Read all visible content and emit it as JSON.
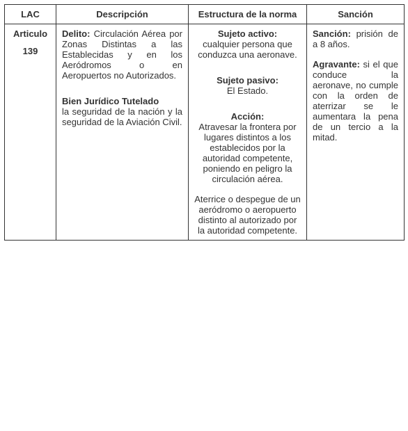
{
  "headers": {
    "lac": "LAC",
    "descripcion": "Descripción",
    "estructura": "Estructura de la norma",
    "sancion": "Sanción"
  },
  "row": {
    "lac": {
      "articulo": "Articulo",
      "numero": "139"
    },
    "descripcion": {
      "delito_label": "Delito:",
      "delito_text": " Circulación Aérea por Zonas Distintas a las Establecidas y en los Aeródromos o en Aeropuertos no Autorizados.",
      "bien_label": "Bien Jurídico Tutelado",
      "bien_text": "la seguridad de la nación y la seguridad de la Aviación Civil."
    },
    "estructura": {
      "sujeto_activo_label": "Sujeto activo:",
      "sujeto_activo_text": "cualquier persona que conduzca una aeronave.",
      "sujeto_pasivo_label": "Sujeto pasivo:",
      "sujeto_pasivo_text": "El Estado.",
      "accion_label": "Acción:",
      "accion_text1": "Atravesar la frontera por lugares distintos a los establecidos por la autoridad competente, poniendo en peligro la circulación aérea.",
      "accion_text2": "Aterrice o despegue de un aeródromo o aeropuerto distinto al autorizado por la autoridad competente."
    },
    "sancion": {
      "sancion_label": "Sanción:",
      "sancion_text": " prisión de a 8 años.",
      "agravante_label": "Agravante:",
      "agravante_text": " si el que conduce la aeronave, no cumple con la orden de aterrizar se le aumentara la pena de un tercio a la mitad."
    }
  }
}
